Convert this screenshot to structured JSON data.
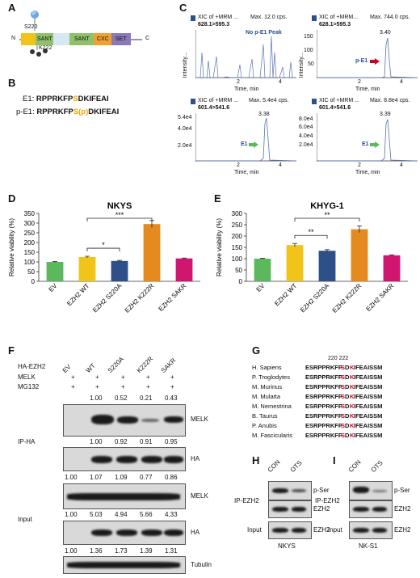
{
  "panels": {
    "A": "A",
    "B": "B",
    "C": "C",
    "D": "D",
    "E": "E",
    "F": "F",
    "G": "G",
    "H": "H",
    "I": "I"
  },
  "panelA": {
    "n_label": "N",
    "c_label": "C",
    "s220": "S220",
    "k222": "K222",
    "p_label": "P",
    "domains": [
      "SANT",
      "SANT",
      "CXC",
      "SET"
    ]
  },
  "panelB": {
    "e1_label": "E1:",
    "e1_seq_a": "RPPRKFP",
    "e1_seq_s": "S",
    "e1_seq_b": "DKIFEAI",
    "pe1_label": "p-E1:",
    "pe1_seq_a": "RPPRKFP",
    "pe1_seq_s": "S(p)",
    "pe1_seq_b": "DKIFEAI"
  },
  "panelC": {
    "plots": [
      {
        "title": "XIC of +MRM ...",
        "max": "Max. 12.0 cps.",
        "transition": "628.1>595.3",
        "annotation": "No p-E1 Peak",
        "peak_label": "",
        "ylabel": "Intensity...",
        "xlabel": "Time, min",
        "yticks": []
      },
      {
        "title": "XIC of +MRM...",
        "max": "Max. 744.0 cps.",
        "transition": "628.1>595.3",
        "annotation": "p-E1",
        "peak_label": "3.40",
        "ylabel": "Intensity...",
        "xlabel": "Time, min",
        "yticks": [
          "150",
          "100",
          "50"
        ]
      },
      {
        "title": "XIC of +MRM ...",
        "max": "Max. 5.4e4 cps.",
        "transition": "601.4>541.6",
        "annotation": "E1",
        "peak_label": "3.38",
        "ylabel": "Intensity...",
        "xlabel": "Time, min",
        "yticks": [
          "5.4e4",
          "4.0e4",
          "2.0e4"
        ]
      },
      {
        "title": "XIC of +MRM ...",
        "max": "Max. 8.8e4 cps.",
        "transition": "601.4>541.6",
        "annotation": "E1",
        "peak_label": "3.39",
        "ylabel": "Intensity...",
        "xlabel": "Time, min",
        "yticks": [
          "8.0e4",
          "6.0e4",
          "4.0e4",
          "2.0e4"
        ]
      }
    ],
    "xticks": [
      "2",
      "4"
    ]
  },
  "chart_data": [
    {
      "type": "bar",
      "title": "NKYS",
      "ylabel": "Relative viability (%)",
      "categories": [
        "EV",
        "EZH2 WT",
        "EZH2 S220A",
        "EZH2 K222R",
        "EZH2 SAKR"
      ],
      "values": [
        100,
        125,
        105,
        295,
        118
      ],
      "errors": [
        2,
        4,
        3,
        18,
        2
      ],
      "colors": [
        "#5cb85c",
        "#f0c419",
        "#2d4f8a",
        "#e58a1f",
        "#d0166f"
      ],
      "ylim": [
        0,
        350
      ],
      "yticks": [
        0,
        50,
        100,
        150,
        200,
        250,
        300,
        350
      ],
      "significance": [
        {
          "from": "EZH2 WT",
          "to": "EZH2 K222R",
          "label": "***"
        },
        {
          "from": "EZH2 WT",
          "to": "EZH2 S220A",
          "label": "*"
        }
      ]
    },
    {
      "type": "bar",
      "title": "KHYG-1",
      "ylabel": "Relative viability (%)",
      "categories": [
        "EV",
        "EZH2 WT",
        "EZH2 S220A",
        "EZH2 K222R",
        "EZH2 SAKR"
      ],
      "values": [
        100,
        160,
        135,
        230,
        115
      ],
      "errors": [
        2,
        7,
        5,
        15,
        2
      ],
      "colors": [
        "#5cb85c",
        "#f0c419",
        "#2d4f8a",
        "#e58a1f",
        "#d0166f"
      ],
      "ylim": [
        0,
        300
      ],
      "yticks": [
        0,
        50,
        100,
        150,
        200,
        250,
        300
      ],
      "significance": [
        {
          "from": "EZH2 WT",
          "to": "EZH2 K222R",
          "label": "**"
        },
        {
          "from": "EZH2 WT",
          "to": "EZH2 S220A",
          "label": "**"
        }
      ]
    }
  ],
  "panelF": {
    "conditions": [
      "EV",
      "WT",
      "S220A",
      "K222R",
      "SAKR"
    ],
    "row_labels": [
      "HA-EZH2",
      "MELK",
      "MG132"
    ],
    "melk_signs": [
      "+",
      "+",
      "+",
      "+",
      "+"
    ],
    "mg132_signs": [
      "+",
      "+",
      "+",
      "+",
      "+"
    ],
    "q_iph_melk": [
      "1.00",
      "0.52",
      "0.21",
      "0.43"
    ],
    "q_iph_ha": [
      "1.00",
      "0.92",
      "0.91",
      "0.95"
    ],
    "q_input_melk": [
      "1.00",
      "1.07",
      "1.09",
      "0.77",
      "0.86"
    ],
    "q_input_ha": [
      "1.00",
      "5.03",
      "4.94",
      "5.66",
      "4.33"
    ],
    "q_tubulin": [
      "1.00",
      "1.36",
      "1.73",
      "1.39",
      "1.31"
    ],
    "blot_labels": [
      "MELK",
      "HA",
      "MELK",
      "HA",
      "Tubulin"
    ],
    "group_ip": "IP-HA",
    "group_input": "Input"
  },
  "panelG": {
    "positions": "220 222",
    "rows": [
      {
        "species": "H. Sapiens",
        "a": "ESRPPRKFP",
        "s": "S",
        "d": "D",
        "k": "K",
        "b": "IFEAISSM"
      },
      {
        "species": "P. Troglodytes",
        "a": "ESRPPRKFP",
        "s": "S",
        "d": "D",
        "k": "K",
        "b": "IFEAISSM"
      },
      {
        "species": "M. Murinus",
        "a": "ESRPPRKFP",
        "s": "S",
        "d": "D",
        "k": "K",
        "b": "IFEAISSM"
      },
      {
        "species": "M. Mulatta",
        "a": "ESRPPRKFP",
        "s": "S",
        "d": "D",
        "k": "K",
        "b": "IFEAISSM"
      },
      {
        "species": "M. Nemestrina",
        "a": "ESRPPRKFP",
        "s": "S",
        "d": "D",
        "k": "K",
        "b": "IFEAISSM"
      },
      {
        "species": "B. Taurus",
        "a": "ESRPPRKFP",
        "s": "S",
        "d": "D",
        "k": "K",
        "b": "IFEAISSM"
      },
      {
        "species": "P. Anubis",
        "a": "ESRPPRKFP",
        "s": "S",
        "d": "D",
        "k": "K",
        "b": "IFEAISSM"
      },
      {
        "species": "M. Fascicularis",
        "a": "ESRPPRKFP",
        "s": "S",
        "d": "D",
        "k": "K",
        "b": "IFEAISSM"
      }
    ]
  },
  "panelH": {
    "con": "CON",
    "ots": "OTS",
    "ip": "IP-EZH2",
    "input": "Input",
    "labels": [
      "p-Ser",
      "EZH2",
      "EZH2"
    ],
    "cell": "NKYS"
  },
  "panelI": {
    "con": "CON",
    "ots": "OTS",
    "ip": "IP-EZH2",
    "input": "Input",
    "labels": [
      "p-Ser",
      "EZH2",
      "EZH2"
    ],
    "cell": "NK-S1"
  }
}
